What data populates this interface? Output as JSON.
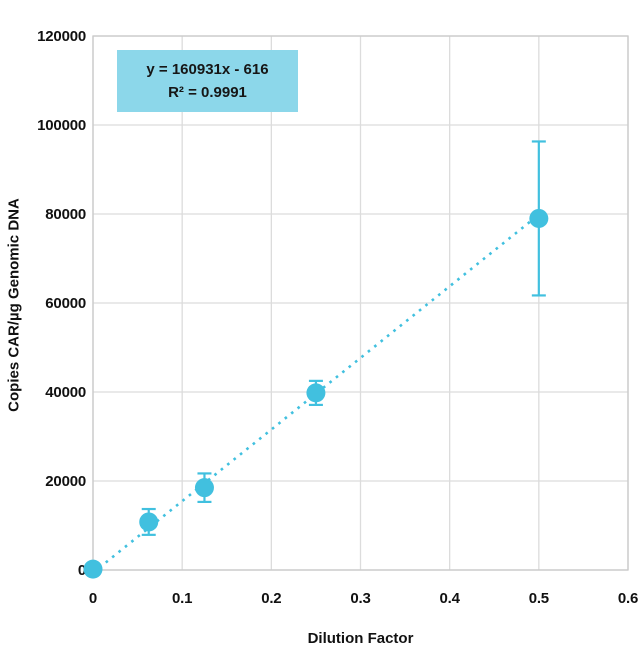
{
  "chart_data": {
    "type": "scatter",
    "title": "",
    "xlabel": "Dilution Factor",
    "ylabel": "Copies CAR/µg Genomic DNA",
    "xlim": [
      0,
      0.6
    ],
    "ylim": [
      0,
      120000
    ],
    "grid": true,
    "xticks": {
      "values": [
        0,
        0.1,
        0.2,
        0.3,
        0.4,
        0.5,
        0.6
      ],
      "labels": [
        "0",
        "0.1",
        "0.2",
        "0.3",
        "0.4",
        "0.5",
        "0.6"
      ]
    },
    "yticks": {
      "values": [
        0,
        20000,
        40000,
        60000,
        80000,
        100000,
        120000
      ],
      "labels": [
        "0",
        "20000",
        "40000",
        "60000",
        "80000",
        "100000",
        "120000"
      ]
    },
    "points": [
      {
        "x": 0,
        "y": 200,
        "yerr": null
      },
      {
        "x": 0.0625,
        "y": 10800,
        "yerr": 2900
      },
      {
        "x": 0.125,
        "y": 18500,
        "yerr": 3200
      },
      {
        "x": 0.25,
        "y": 39800,
        "yerr": 2700
      },
      {
        "x": 0.5,
        "y": 79000,
        "yerr": 17300
      }
    ],
    "trendline": {
      "slope": 160931,
      "intercept": -616,
      "x_start": 0,
      "x_end": 0.5,
      "style": "dotted"
    },
    "annotation": {
      "line1": "y = 160931x - 616",
      "line2": "R² = 0.9991"
    },
    "colors": {
      "marker": "#41C0DF",
      "error_bar": "#41C0DF",
      "trendline": "#41C0DF",
      "annotation_bg": "#8CD7EA",
      "grid": "#DCDCDC",
      "frame": "#C9C9C9",
      "text": "#111111"
    }
  }
}
